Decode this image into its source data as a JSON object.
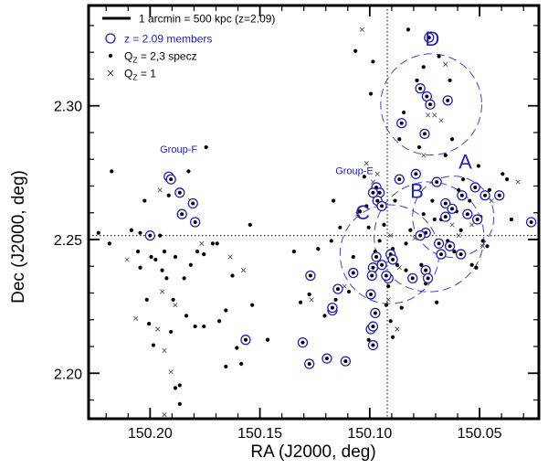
{
  "chart_data": {
    "type": "scatter",
    "xlabel": "RA (J2000, deg)",
    "ylabel": "Dec (J2000, deg)",
    "xlim": [
      150.228,
      150.023
    ],
    "ylim": [
      2.183,
      2.3375
    ],
    "x_inverted": true,
    "x_ticks": [
      "150.20",
      "150.15",
      "150.10",
      "150.05"
    ],
    "y_ticks": [
      "2.20",
      "2.25",
      "2.30"
    ],
    "crosshair": {
      "ra": 150.092,
      "dec": 2.2515
    },
    "legend": {
      "position": "top-left",
      "scale_bar": "1 arcmin = 500 kpc (z=2.09)",
      "members": "z = 2.09 members",
      "specz": "Q",
      "specz_sub": "Z",
      "specz_rest": " = 2,3 specz",
      "phot": "Q",
      "phot_sub": "Z",
      "phot_rest": " = 1"
    },
    "colors": {
      "member": "#2222bb",
      "group": "#4444cc",
      "points": "#000000"
    },
    "groups": [
      {
        "label": "A",
        "ra": 150.062,
        "dec": 2.2585,
        "r": 0.0185,
        "text_ra": 150.0565,
        "text_dec": 2.2765,
        "size": "large"
      },
      {
        "label": "B",
        "ra": 150.073,
        "dec": 2.251,
        "r": 0.025,
        "text_ra": 150.0785,
        "text_dec": 2.2655,
        "size": "large"
      },
      {
        "label": "C",
        "ra": 150.091,
        "dec": 2.2445,
        "r": 0.0225,
        "text_ra": 150.1032,
        "text_dec": 2.2575,
        "size": "large"
      },
      {
        "label": "D",
        "ra": 150.072,
        "dec": 2.3005,
        "r": 0.023,
        "text_ra": 150.0715,
        "text_dec": 2.3225,
        "size": "large"
      },
      {
        "label": "Group-E",
        "text_ra": 150.107,
        "text_dec": 2.2745,
        "size": "small"
      },
      {
        "label": "Group-F",
        "text_ra": 150.187,
        "text_dec": 2.2825,
        "size": "small"
      }
    ],
    "members": [
      [
        150.073,
        2.3255
      ],
      [
        150.077,
        2.3065
      ],
      [
        150.074,
        2.3035
      ],
      [
        150.0725,
        2.3005
      ],
      [
        150.0645,
        2.302
      ],
      [
        150.0855,
        2.2935
      ],
      [
        150.075,
        2.2895
      ],
      [
        150.079,
        2.2745
      ],
      [
        150.0865,
        2.2725
      ],
      [
        150.0695,
        2.2715
      ],
      [
        150.052,
        2.2695
      ],
      [
        150.0475,
        2.2665
      ],
      [
        150.058,
        2.2665
      ],
      [
        150.041,
        2.2665
      ],
      [
        150.0655,
        2.2635
      ],
      [
        150.0625,
        2.2615
      ],
      [
        150.0555,
        2.2595
      ],
      [
        150.0655,
        2.2585
      ],
      [
        150.051,
        2.2575
      ],
      [
        150.0265,
        2.2565
      ],
      [
        150.0745,
        2.2525
      ],
      [
        150.077,
        2.2515
      ],
      [
        150.0685,
        2.2485
      ],
      [
        150.0635,
        2.2475
      ],
      [
        150.0675,
        2.2445
      ],
      [
        150.0585,
        2.2445
      ],
      [
        150.0745,
        2.2385
      ],
      [
        150.0805,
        2.2355
      ],
      [
        150.0735,
        2.2355
      ],
      [
        150.097,
        2.2695
      ],
      [
        150.0955,
        2.2675
      ],
      [
        150.0965,
        2.2645
      ],
      [
        150.0985,
        2.2675
      ],
      [
        150.0945,
        2.2625
      ],
      [
        150.0905,
        2.2445
      ],
      [
        150.0895,
        2.2425
      ],
      [
        150.097,
        2.2435
      ],
      [
        150.0945,
        2.2405
      ],
      [
        150.0985,
        2.2395
      ],
      [
        150.0915,
        2.2355
      ],
      [
        150.0925,
        2.2365
      ],
      [
        150.099,
        2.2365
      ],
      [
        150.0995,
        2.2295
      ],
      [
        150.0975,
        2.2225
      ],
      [
        150.0995,
        2.2165
      ],
      [
        150.0985,
        2.2175
      ],
      [
        150.0985,
        2.2105
      ],
      [
        150.1075,
        2.2375
      ],
      [
        150.1145,
        2.2315
      ],
      [
        150.117,
        2.2235
      ],
      [
        150.127,
        2.2365
      ],
      [
        150.117,
        2.2245
      ],
      [
        150.1305,
        2.2115
      ],
      [
        150.1275,
        2.2035
      ],
      [
        150.1195,
        2.2055
      ],
      [
        150.111,
        2.2045
      ],
      [
        150.1565,
        2.2125
      ],
      [
        150.1915,
        2.2735
      ],
      [
        150.1905,
        2.2725
      ],
      [
        150.1865,
        2.2675
      ],
      [
        150.1805,
        2.2635
      ],
      [
        150.1855,
        2.2595
      ],
      [
        150.1795,
        2.2565
      ],
      [
        150.2,
        2.2515
      ]
    ],
    "specz": [
      [
        150.2235,
        2.2525
      ],
      [
        150.2185,
        2.2485
      ],
      [
        150.2175,
        2.2755
      ],
      [
        150.2085,
        2.2535
      ],
      [
        150.2055,
        2.2455
      ],
      [
        150.2045,
        2.2525
      ],
      [
        150.2045,
        2.2395
      ],
      [
        150.2025,
        2.2645
      ],
      [
        150.2015,
        2.2275
      ],
      [
        150.2005,
        2.2185
      ],
      [
        150.1995,
        2.2435
      ],
      [
        150.1985,
        2.2105
      ],
      [
        150.1975,
        2.2425
      ],
      [
        150.1955,
        2.2515
      ],
      [
        150.1945,
        2.2385
      ],
      [
        150.1935,
        2.2455
      ],
      [
        150.1925,
        2.2355
      ],
      [
        150.1915,
        2.2665
      ],
      [
        150.1905,
        2.2155
      ],
      [
        150.1895,
        2.2275
      ],
      [
        150.1885,
        2.2435
      ],
      [
        150.1885,
        2.1945
      ],
      [
        150.1865,
        2.1955
      ],
      [
        150.1865,
        2.1885
      ],
      [
        150.1845,
        2.2355
      ],
      [
        150.1835,
        2.2215
      ],
      [
        150.1825,
        2.2755
      ],
      [
        150.1815,
        2.2405
      ],
      [
        150.1795,
        2.2175
      ],
      [
        150.1785,
        2.2455
      ],
      [
        150.1755,
        2.2445
      ],
      [
        150.1755,
        2.2175
      ],
      [
        150.1745,
        2.2845
      ],
      [
        150.1715,
        2.2485
      ],
      [
        150.1695,
        2.2485
      ],
      [
        150.1685,
        2.2195
      ],
      [
        150.1655,
        2.2235
      ],
      [
        150.1655,
        2.2025
      ],
      [
        150.1625,
        2.2365
      ],
      [
        150.1605,
        2.2095
      ],
      [
        150.1585,
        2.2035
      ],
      [
        150.1545,
        2.2555
      ],
      [
        150.1535,
        2.2255
      ],
      [
        150.1465,
        2.2125
      ],
      [
        150.1345,
        2.2455
      ],
      [
        150.1315,
        2.2265
      ],
      [
        150.1275,
        2.2295
      ],
      [
        150.1235,
        2.2465
      ],
      [
        150.1205,
        2.2215
      ],
      [
        150.1175,
        2.2495
      ],
      [
        150.1165,
        2.2645
      ],
      [
        150.1155,
        2.2275
      ],
      [
        150.1135,
        2.2545
      ],
      [
        150.1095,
        2.2305
      ],
      [
        150.1075,
        2.2435
      ],
      [
        150.1065,
        2.3205
      ],
      [
        150.1045,
        2.2605
      ],
      [
        150.1025,
        2.2735
      ],
      [
        150.1015,
        2.2625
      ],
      [
        150.1005,
        2.2545
      ],
      [
        150.1005,
        2.2125
      ],
      [
        150.0995,
        2.3045
      ],
      [
        150.0985,
        2.3165
      ],
      [
        150.0965,
        2.2635
      ],
      [
        150.0945,
        2.2625
      ],
      [
        150.0935,
        2.2555
      ],
      [
        150.0915,
        2.2325
      ],
      [
        150.0905,
        2.2195
      ],
      [
        150.0895,
        2.2135
      ],
      [
        150.0885,
        2.2645
      ],
      [
        150.0865,
        2.2875
      ],
      [
        150.0855,
        2.2245
      ],
      [
        150.0845,
        2.2975
      ],
      [
        150.0835,
        2.2485
      ],
      [
        150.0825,
        2.3285
      ],
      [
        150.0815,
        2.2535
      ],
      [
        150.0795,
        2.2345
      ],
      [
        150.0785,
        2.3095
      ],
      [
        150.0775,
        2.2845
      ],
      [
        150.0765,
        2.2405
      ],
      [
        150.0755,
        2.3145
      ],
      [
        150.0755,
        2.2595
      ],
      [
        150.0745,
        2.2335
      ],
      [
        150.0715,
        2.2645
      ],
      [
        150.0705,
        2.2575
      ],
      [
        150.0695,
        2.2265
      ],
      [
        150.0685,
        2.3185
      ],
      [
        150.0675,
        2.2575
      ],
      [
        150.0655,
        2.2815
      ],
      [
        150.0645,
        2.2495
      ],
      [
        150.0635,
        2.3095
      ],
      [
        150.0625,
        2.2875
      ],
      [
        150.0615,
        2.2455
      ],
      [
        150.0605,
        2.2605
      ],
      [
        150.0595,
        2.2685
      ],
      [
        150.0585,
        2.2535
      ],
      [
        150.0575,
        2.2725
      ],
      [
        150.0545,
        2.2645
      ],
      [
        150.0535,
        2.2405
      ],
      [
        150.0515,
        2.2395
      ],
      [
        150.0505,
        2.2775
      ],
      [
        150.0495,
        2.2585
      ],
      [
        150.0485,
        2.2495
      ],
      [
        150.0465,
        2.2475
      ],
      [
        150.0455,
        2.2685
      ],
      [
        150.0395,
        2.2745
      ],
      [
        150.0375,
        2.2725
      ],
      [
        150.0355,
        2.2575
      ],
      [
        150.0895,
        2.2465
      ],
      [
        150.0875,
        2.2405
      ],
      [
        150.0835,
        2.2385
      ],
      [
        150.0925,
        2.2255
      ],
      [
        150.0955,
        2.2495
      ],
      [
        150.0975,
        2.2455
      ]
    ],
    "photz": [
      [
        150.1955,
        2.2685
      ],
      [
        150.1965,
        2.2165
      ],
      [
        150.1945,
        2.2305
      ],
      [
        150.1885,
        2.2255
      ],
      [
        150.2105,
        2.2425
      ],
      [
        150.2065,
        2.2205
      ],
      [
        150.1935,
        2.2085
      ],
      [
        150.1905,
        2.2005
      ],
      [
        150.1935,
        2.1845
      ],
      [
        150.1815,
        2.2645
      ],
      [
        150.1765,
        2.2485
      ],
      [
        150.1635,
        2.2435
      ],
      [
        150.1575,
        2.2385
      ],
      [
        150.1265,
        2.2275
      ],
      [
        150.1115,
        2.2325
      ],
      [
        150.1055,
        2.2595
      ],
      [
        150.0985,
        2.2715
      ],
      [
        150.0965,
        2.2745
      ],
      [
        150.0905,
        2.2515
      ],
      [
        150.0915,
        2.2275
      ],
      [
        150.0875,
        2.2165
      ],
      [
        150.0755,
        2.2815
      ],
      [
        150.0735,
        2.2965
      ],
      [
        150.0705,
        2.2965
      ],
      [
        150.0675,
        2.2945
      ],
      [
        150.0655,
        2.3155
      ],
      [
        150.0625,
        2.2555
      ],
      [
        150.0595,
        2.2515
      ],
      [
        150.0535,
        2.2555
      ],
      [
        150.0485,
        2.2475
      ],
      [
        150.0445,
        2.2645
      ],
      [
        150.0325,
        2.2715
      ],
      [
        150.1035,
        2.3285
      ],
      [
        150.1015,
        2.2785
      ],
      [
        150.0865,
        2.2395
      ],
      [
        150.0795,
        2.2505
      ]
    ]
  }
}
